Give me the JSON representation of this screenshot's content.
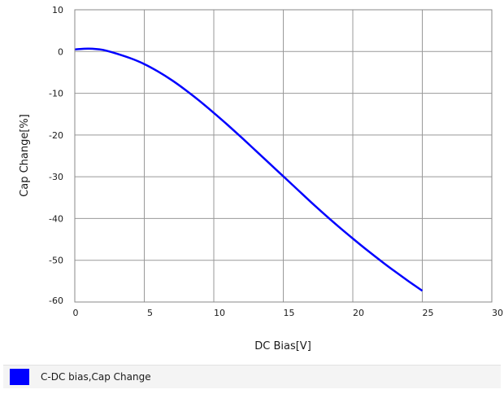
{
  "chart_data": {
    "type": "line",
    "title": "",
    "xlabel": "DC Bias[V]",
    "ylabel": "Cap Change[%]",
    "xlim": [
      0,
      30
    ],
    "ylim": [
      -60,
      10
    ],
    "x_ticks": [
      0,
      5,
      10,
      15,
      20,
      25,
      30
    ],
    "y_ticks": [
      10,
      0,
      -10,
      -20,
      -30,
      -40,
      -50,
      -60
    ],
    "grid": true,
    "legend_position": "bottom",
    "series": [
      {
        "name": "C-DC bias,Cap Change",
        "color": "#0000ff",
        "x": [
          0,
          1,
          2,
          3,
          4,
          5,
          6,
          7,
          8,
          9,
          10,
          11,
          12,
          13,
          14,
          15,
          16,
          17,
          18,
          19,
          20,
          21,
          22,
          23,
          24,
          25
        ],
        "y": [
          0.5,
          0.7,
          0.4,
          -0.5,
          -1.6,
          -3.0,
          -4.8,
          -6.9,
          -9.3,
          -11.9,
          -14.7,
          -17.6,
          -20.6,
          -23.7,
          -26.8,
          -29.9,
          -33.0,
          -36.1,
          -39.1,
          -42.0,
          -44.8,
          -47.5,
          -50.1,
          -52.6,
          -55.0,
          -57.3
        ]
      }
    ]
  }
}
